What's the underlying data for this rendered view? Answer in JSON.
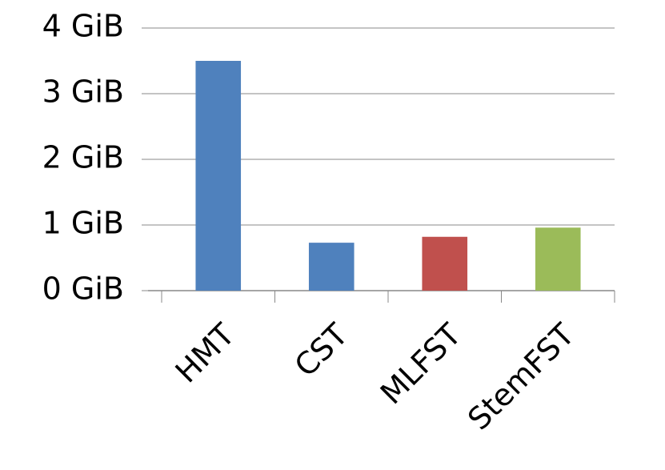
{
  "chart_data": {
    "type": "bar",
    "categories": [
      "HMT",
      "CST",
      "MLFST",
      "StemFST"
    ],
    "values": [
      3.5,
      0.73,
      0.82,
      0.96
    ],
    "colors": [
      "#4f81bd",
      "#4f81bd",
      "#c0504d",
      "#9bbb59"
    ],
    "ylim": [
      0,
      4
    ],
    "yticks": [
      {
        "value": 0,
        "label": "0 GiB"
      },
      {
        "value": 1,
        "label": "1 GiB"
      },
      {
        "value": 2,
        "label": "2 GiB"
      },
      {
        "value": 3,
        "label": "3 GiB"
      },
      {
        "value": 4,
        "label": "4 GiB"
      }
    ],
    "grid": true
  }
}
